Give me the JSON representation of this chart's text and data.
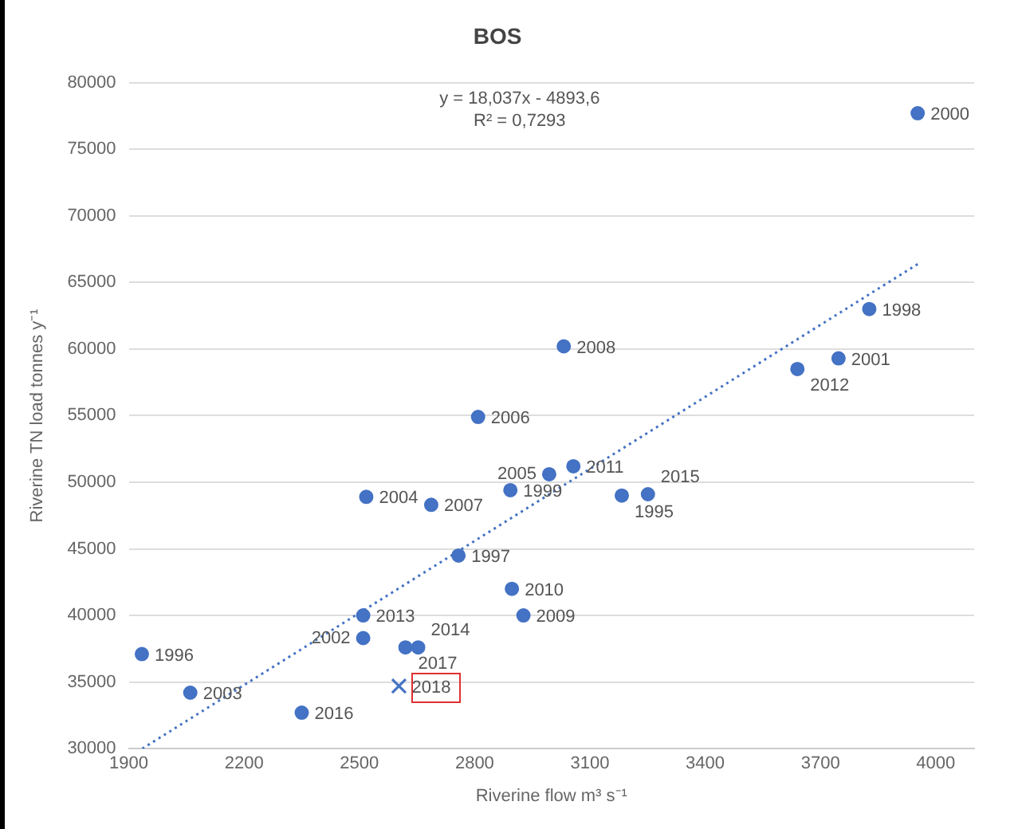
{
  "chart_data": {
    "type": "scatter",
    "title": "BOS",
    "xlabel": "Riverine flow m³ s⁻¹",
    "ylabel": "Riverine TN load tonnes y⁻¹",
    "annotations": [
      "y = 18,037x - 4893,6",
      "R² = 0,7293",
      {
        "text": "1996",
        "x": 1934,
        "y": 37100
      },
      {
        "text": "2003",
        "x": 2060,
        "y": 34200
      },
      {
        "text": "2016",
        "x": 2350,
        "y": 32700
      },
      {
        "text": "2013",
        "x": 2510,
        "y": 40000
      },
      {
        "text": "2002",
        "x": 2510,
        "y": 38300
      },
      {
        "text": "2017",
        "x": 2620,
        "y": 37600
      },
      {
        "text": "2014",
        "x": 2653,
        "y": 37600
      },
      {
        "text": "2004",
        "x": 2518,
        "y": 48900
      },
      {
        "text": "2007",
        "x": 2687,
        "y": 48300
      },
      {
        "text": "1997",
        "x": 2758,
        "y": 44500
      },
      {
        "text": "2006",
        "x": 2809,
        "y": 54900
      },
      {
        "text": "1999",
        "x": 2893,
        "y": 49400
      },
      {
        "text": "2005",
        "x": 2994,
        "y": 50600
      },
      {
        "text": "2011",
        "x": 3057,
        "y": 51200
      },
      {
        "text": "1995",
        "x": 3183,
        "y": 49000
      },
      {
        "text": "2015",
        "x": 3251,
        "y": 49100
      },
      {
        "text": "2010",
        "x": 2897,
        "y": 42000
      },
      {
        "text": "2009",
        "x": 2927,
        "y": 40000
      },
      {
        "text": "2008",
        "x": 3032,
        "y": 60200
      },
      {
        "text": "2012",
        "x": 3640,
        "y": 58500
      },
      {
        "text": "2001",
        "x": 3747,
        "y": 59300
      },
      {
        "text": "1998",
        "x": 3827,
        "y": 63000
      },
      {
        "text": "2000",
        "x": 3953,
        "y": 77700
      },
      {
        "text": "2018",
        "x": 2603,
        "y": 34700
      }
    ],
    "xlim": [
      1900,
      4100
    ],
    "xticks": [
      1900,
      2200,
      2500,
      2800,
      3100,
      3400,
      3700,
      4000
    ],
    "ylim": [
      30000,
      80000
    ],
    "yticks": [
      30000,
      35000,
      40000,
      45000,
      50000,
      55000,
      60000,
      65000,
      70000,
      75000,
      80000
    ],
    "grid": "y",
    "legend": false,
    "series": [
      {
        "type": "scatter",
        "marker": "circle",
        "color": "#4472c4",
        "x": [
          1934,
          2060,
          2350,
          2510,
          2510,
          2620,
          2653,
          2518,
          2687,
          2758,
          2809,
          2893,
          2994,
          3057,
          3183,
          3251,
          2897,
          2927,
          3032,
          3640,
          3747,
          3827,
          3953
        ],
        "values": [
          37100,
          34200,
          32700,
          40000,
          38300,
          37600,
          37600,
          48900,
          48300,
          44500,
          54900,
          49400,
          50600,
          51200,
          49000,
          49100,
          42000,
          40000,
          60200,
          58500,
          59300,
          63000,
          77700
        ]
      },
      {
        "type": "scatter",
        "marker": "cross",
        "color": "#4472c4",
        "x": [
          2603
        ],
        "values": [
          34700
        ]
      },
      {
        "type": "line",
        "line_style": "dotted",
        "color": "#4472c4",
        "x": [
          1935,
          3960
        ],
        "values": [
          30000,
          66500
        ]
      }
    ]
  }
}
